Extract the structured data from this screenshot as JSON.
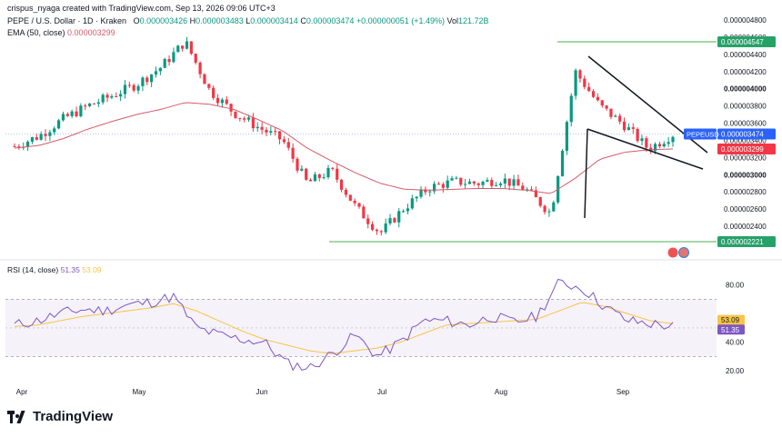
{
  "header": {
    "attribution": "crispus_nyaga created with TradingView.com, Sep 13, 2026 09:06 UTC+3",
    "symbol": "PEPE / U.S. Dollar · 1D · Kraken",
    "ohlc": {
      "o_label": "O",
      "o": "0.000003426",
      "h_label": "H",
      "h": "0.000003483",
      "l_label": "L",
      "l": "0.000003414",
      "c_label": "C",
      "c": "0.000003474",
      "change": "+0.000000051 (+1.49%)",
      "vol_label": "Vol",
      "vol": "121.72B"
    },
    "ema_label": "EMA (50, close)",
    "ema_value": "0.000003299"
  },
  "rsi_header": {
    "label": "RSI (14, close)",
    "rsi_value": "51.35",
    "ma_value": "53.09"
  },
  "brand": {
    "logo_text": "TradingView"
  },
  "colors": {
    "up": "#089981",
    "down": "#f23645",
    "ema": "#d55b6a",
    "rsi": "#7e57c2",
    "rsi_ma": "#f7c547",
    "level_line": "#4caf50",
    "symbol_tag": "#2962ff"
  },
  "chart_data": [
    {
      "type": "candlestick",
      "title": "PEPE / U.S. Dollar · 1D · Kraken",
      "x_ticks": [
        "Apr",
        "May",
        "Jun",
        "Jul",
        "Aug",
        "Sep"
      ],
      "ylim": [
        2.2e-06,
        4.8e-06
      ],
      "y_ticks": [
        "0.000004800",
        "0.000004600",
        "0.000004400",
        "0.000004200",
        "0.000004000",
        "0.000003800",
        "0.000003600",
        "0.000003400",
        "0.000003200",
        "0.000003000",
        "0.000002800",
        "0.000002600",
        "0.000002400"
      ],
      "y_ticks_bold": [
        "0.000004000",
        "0.000003000"
      ],
      "price_tags": [
        {
          "value": 4.547e-06,
          "text": "0.000004547",
          "kind": "level"
        },
        {
          "value": 3.474e-06,
          "text": "0.000003474",
          "symbol": "PEPEUSD",
          "kind": "last"
        },
        {
          "value": 3.299e-06,
          "text": "0.000003299",
          "kind": "ema"
        },
        {
          "value": 2.221e-06,
          "text": "0.000002221",
          "kind": "level"
        }
      ],
      "horizontal_levels": [
        4.547e-06,
        2.221e-06
      ],
      "series_close_approx": {
        "x": [
          "Mar 25",
          "Apr 1",
          "Apr 8",
          "Apr 15",
          "Apr 22",
          "Apr 29",
          "May 6",
          "May 10",
          "May 13",
          "May 20",
          "May 27",
          "Jun 3",
          "Jun 10",
          "Jun 17",
          "Jun 24",
          "Jul 1",
          "Jul 8",
          "Jul 15",
          "Jul 22",
          "Jul 29",
          "Aug 5",
          "Aug 12",
          "Aug 19",
          "Aug 22",
          "Aug 26",
          "Sep 2",
          "Sep 9",
          "Sep 12"
        ],
        "close": [
          3.33e-06,
          3.45e-06,
          3.65e-06,
          3.8e-06,
          3.92e-06,
          4.05e-06,
          4.25e-06,
          4.55e-06,
          3.98e-06,
          3.72e-06,
          3.55e-06,
          3.4e-06,
          2.9e-06,
          3.05e-06,
          2.62e-06,
          2.32e-06,
          2.62e-06,
          2.85e-06,
          2.92e-06,
          2.9e-06,
          2.95e-06,
          2.82e-06,
          2.55e-06,
          4.2e-06,
          3.8e-06,
          3.58e-06,
          3.3e-06,
          3.47e-06
        ]
      },
      "ema_close_approx": [
        3.31e-06,
        3.34e-06,
        3.42e-06,
        3.53e-06,
        3.62e-06,
        3.7e-06,
        3.76e-06,
        3.84e-06,
        3.82e-06,
        3.76e-06,
        3.64e-06,
        3.51e-06,
        3.31e-06,
        3.16e-06,
        3.02e-06,
        2.9e-06,
        2.83e-06,
        2.82e-06,
        2.83e-06,
        2.84e-06,
        2.84e-06,
        2.82e-06,
        2.78e-06,
        2.96e-06,
        3.18e-06,
        3.26e-06,
        3.29e-06,
        3.3e-06
      ]
    },
    {
      "type": "line",
      "title": "RSI (14, close)",
      "ylim": [
        15,
        90
      ],
      "y_ticks": [
        "80.00",
        "40.00",
        "20.00"
      ],
      "bands": [
        30,
        70
      ],
      "series": [
        {
          "name": "RSI",
          "values": [
            52,
            55,
            60,
            63,
            62,
            66,
            68,
            72,
            50,
            45,
            42,
            40,
            25,
            22,
            32,
            45,
            30,
            40,
            55,
            55,
            52,
            58,
            54,
            58,
            82,
            78,
            65,
            55,
            53,
            51
          ]
        },
        {
          "name": "RSI MA",
          "values": [
            51,
            52,
            55,
            58,
            60,
            62,
            64,
            67,
            62,
            55,
            48,
            42,
            38,
            34,
            32,
            34,
            36,
            40,
            46,
            52,
            53,
            54,
            55,
            56,
            62,
            68,
            65,
            60,
            55,
            53
          ]
        }
      ],
      "price_tags": [
        {
          "value": 53.09,
          "text": "53.09"
        },
        {
          "value": 51.35,
          "text": "51.35"
        }
      ]
    }
  ]
}
